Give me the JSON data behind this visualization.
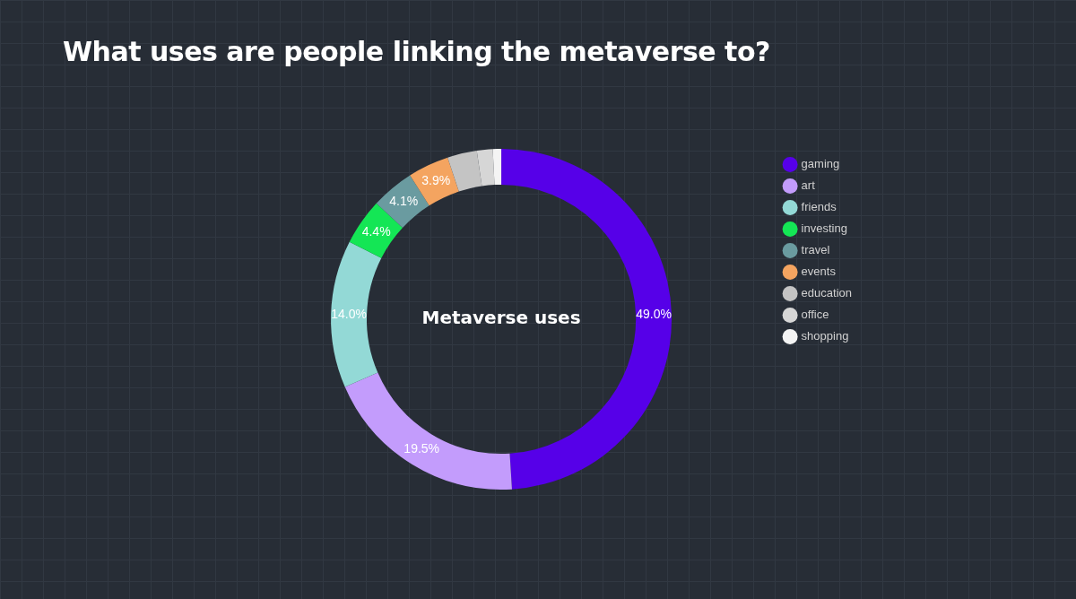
{
  "chart_data": {
    "type": "donut",
    "title": "What uses are people linking the metaverse to?",
    "categories": [
      "gaming",
      "art",
      "friends",
      "investing",
      "travel",
      "events",
      "education",
      "office",
      "shopping"
    ],
    "values": [
      49.0,
      19.5,
      14.0,
      4.4,
      4.1,
      3.9,
      2.8,
      1.5,
      0.8
    ],
    "colors": [
      "#5600e8",
      "#c39cfc",
      "#93d9d6",
      "#14e655",
      "#6a9ba0",
      "#f4a460",
      "#c4c4c4",
      "#d6d6d6",
      "#f4f4f4"
    ],
    "value_labels": [
      "49.0%",
      "19.5%",
      "14.0%",
      "4.4%",
      "4.1%",
      "3.9%",
      null,
      null,
      null
    ],
    "annotations": [
      "Metaverse uses"
    ],
    "legend": "top right"
  }
}
